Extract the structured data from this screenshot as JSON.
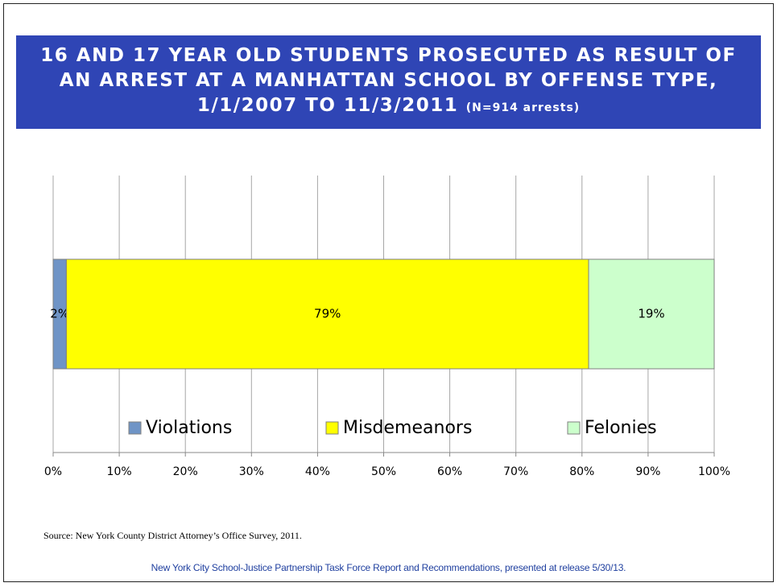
{
  "chart_data": {
    "type": "stacked-bar-horizontal",
    "title": "16 AND 17 YEAR OLD STUDENTS PROSECUTED AS RESULT OF AN ARREST AT A MANHATTAN SCHOOL BY OFFENSE TYPE, 1/1/2007 TO 11/3/2011",
    "subtitle": "(N=914 arrests)",
    "categories": [
      null
    ],
    "series": [
      {
        "name": "Violations",
        "color": "#6f94c6",
        "values": [
          2
        ],
        "value_labels": [
          "2%"
        ]
      },
      {
        "name": "Misdemeanors",
        "color": "#ffff00",
        "values": [
          79
        ],
        "value_labels": [
          "79%"
        ]
      },
      {
        "name": "Felonies",
        "color": "#ccffcc",
        "values": [
          19
        ],
        "value_labels": [
          "19%"
        ]
      }
    ],
    "xlim": [
      0,
      100
    ],
    "xticks": [
      {
        "value": 0,
        "label": "0%"
      },
      {
        "value": 10,
        "label": "10%"
      },
      {
        "value": 20,
        "label": "20%"
      },
      {
        "value": 30,
        "label": "30%"
      },
      {
        "value": 40,
        "label": "40%"
      },
      {
        "value": 50,
        "label": "50%"
      },
      {
        "value": 60,
        "label": "60%"
      },
      {
        "value": 70,
        "label": "70%"
      },
      {
        "value": 80,
        "label": "80%"
      },
      {
        "value": 90,
        "label": "90%"
      },
      {
        "value": 100,
        "label": "100%"
      }
    ],
    "grid": true,
    "legend": "bottom",
    "source": "Source: New York County District Attorney’s Office Survey, 2011.",
    "footer": "New York City School-Justice Partnership Task Force Report and Recommendations, presented at release 5/30/13."
  }
}
